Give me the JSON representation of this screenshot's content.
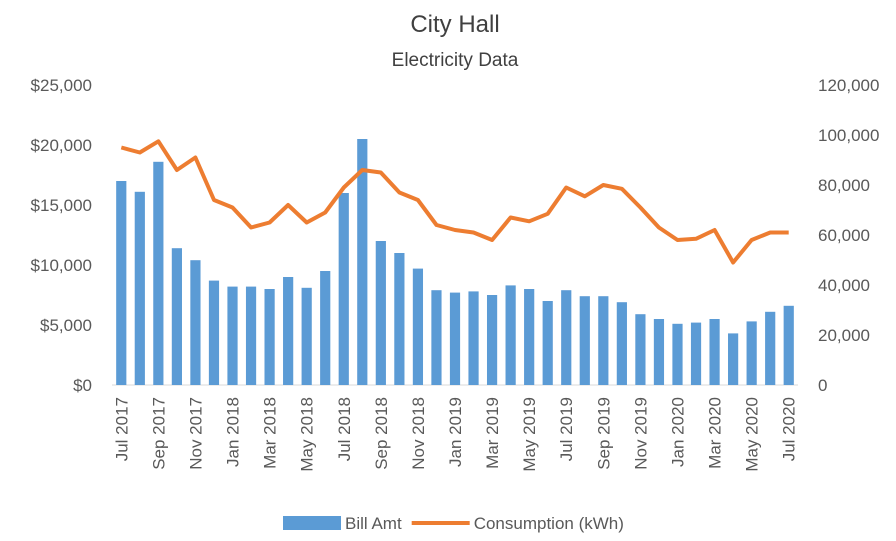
{
  "chart_data": {
    "type": "bar_line",
    "title": "City Hall",
    "subtitle": "Electricity Data",
    "categories": [
      "Jul 2017",
      null,
      "Sep 2017",
      null,
      "Nov 2017",
      null,
      "Jan 2018",
      null,
      "Mar 2018",
      null,
      "May 2018",
      null,
      "Jul 2018",
      null,
      "Sep 2018",
      null,
      "Nov 2018",
      null,
      "Jan 2019",
      null,
      "Mar 2019",
      null,
      "May 2019",
      null,
      "Jul 2019",
      null,
      "Sep 2019",
      null,
      "Nov 2019",
      null,
      "Jan 2020",
      null,
      "Mar 2020",
      null,
      "May 2020",
      null,
      "Jul 2020"
    ],
    "series": [
      {
        "name": "Bill Amt",
        "color": "#5b9bd5",
        "type": "bar",
        "values": [
          17000,
          16100,
          18600,
          11400,
          10400,
          8700,
          8200,
          8200,
          8000,
          9000,
          8100,
          9500,
          16000,
          20500,
          12000,
          11000,
          9700,
          7900,
          7700,
          7800,
          7500,
          8300,
          8000,
          7000,
          7900,
          7400,
          7400,
          6900,
          5900,
          5500,
          5100,
          5200,
          5500,
          4300,
          5300,
          6100,
          6600
        ]
      },
      {
        "name": "Consumption (kWh)",
        "color": "#ed7d31",
        "type": "line",
        "axis": "y2",
        "values": [
          95000,
          93000,
          97500,
          86000,
          91000,
          74000,
          71000,
          63000,
          65000,
          72000,
          65000,
          69000,
          79000,
          86000,
          85000,
          77000,
          74000,
          64000,
          62000,
          61000,
          58000,
          67000,
          65500,
          68500,
          79000,
          75500,
          80000,
          78500,
          71000,
          63000,
          58000,
          58500,
          62000,
          49000,
          58000,
          61000,
          61000
        ]
      }
    ],
    "ylim": [
      0,
      25000
    ],
    "yticks": [
      {
        "value": 0,
        "label": "$0"
      },
      {
        "value": 5000,
        "label": "$5,000"
      },
      {
        "value": 10000,
        "label": "$10,000"
      },
      {
        "value": 15000,
        "label": "$15,000"
      },
      {
        "value": 20000,
        "label": "$20,000"
      },
      {
        "value": 25000,
        "label": "$25,000"
      }
    ],
    "y2lim": [
      0,
      120000
    ],
    "y2ticks": [
      0,
      {
        "value": 20000,
        "label": "20,000"
      },
      {
        "value": 40000,
        "label": "40,000"
      },
      {
        "value": 60000,
        "label": "60,000"
      },
      {
        "value": 80000,
        "label": "80,000"
      },
      {
        "value": 100000,
        "label": "100,000"
      },
      {
        "value": 120000,
        "label": "120,000"
      }
    ],
    "legend": "bottom"
  }
}
